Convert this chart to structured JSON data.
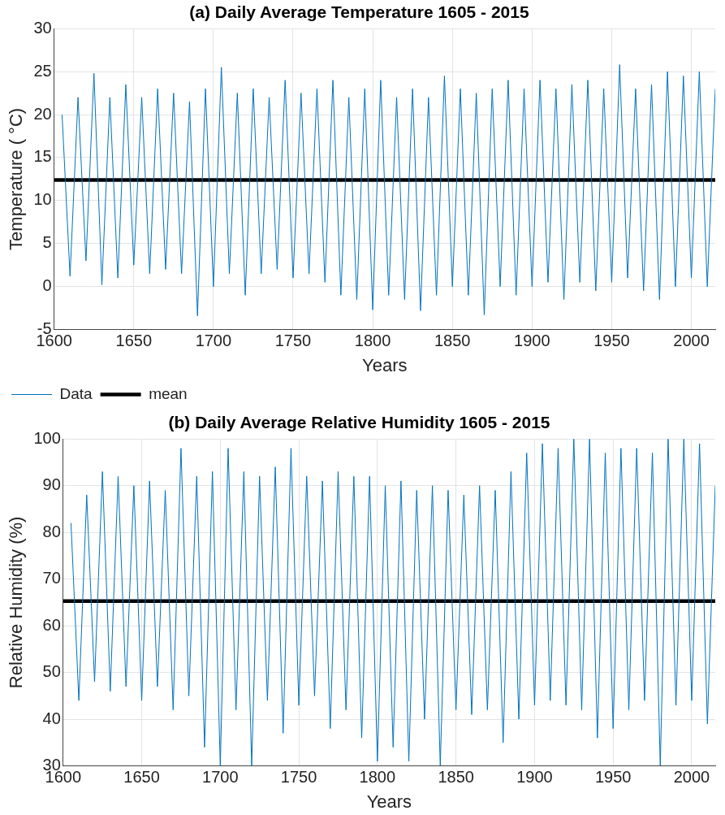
{
  "chart_data": [
    {
      "type": "line",
      "title": "(a) Daily Average Temperature 1605 - 2015",
      "xlabel": "Years",
      "ylabel": "Temperature ( °C)",
      "x": [
        1605,
        1610,
        1615,
        1620,
        1625,
        1630,
        1635,
        1640,
        1645,
        1650,
        1655,
        1660,
        1665,
        1670,
        1675,
        1680,
        1685,
        1690,
        1695,
        1700,
        1705,
        1710,
        1715,
        1720,
        1725,
        1730,
        1735,
        1740,
        1745,
        1750,
        1755,
        1760,
        1765,
        1770,
        1775,
        1780,
        1785,
        1790,
        1795,
        1800,
        1805,
        1810,
        1815,
        1820,
        1825,
        1830,
        1835,
        1840,
        1845,
        1850,
        1855,
        1860,
        1865,
        1870,
        1875,
        1880,
        1885,
        1890,
        1895,
        1900,
        1905,
        1910,
        1915,
        1920,
        1925,
        1930,
        1935,
        1940,
        1945,
        1950,
        1955,
        1960,
        1965,
        1970,
        1975,
        1980,
        1985,
        1990,
        1995,
        2000,
        2005,
        2010,
        2015
      ],
      "series": [
        {
          "name": "Data",
          "color": "#0072bd",
          "values": [
            20,
            1.2,
            22,
            3,
            24.8,
            0.2,
            22,
            1,
            23.5,
            2.5,
            22,
            1.5,
            23,
            2,
            22.5,
            1.5,
            21.5,
            -3.4,
            23,
            0,
            25.5,
            1.5,
            22.5,
            -1,
            23,
            1.5,
            22,
            2,
            24,
            1,
            22.5,
            1.5,
            23,
            0.5,
            24,
            -1,
            22,
            -1.5,
            23,
            -2.7,
            24,
            -1,
            22,
            -1.5,
            23,
            -2.8,
            22,
            -1,
            24.5,
            0,
            23,
            -1,
            22.5,
            -3.3,
            23,
            0,
            24,
            -1,
            23,
            0,
            24,
            0.5,
            23,
            -1.5,
            23.5,
            0.5,
            24,
            -0.5,
            23,
            0.5,
            25.8,
            1,
            23,
            -0.5,
            23.5,
            -1.5,
            25,
            0,
            24.5,
            1,
            25,
            0,
            23
          ]
        }
      ],
      "ref_lines": [
        {
          "axis": "y",
          "value": 12.4,
          "label": "mean",
          "color": "#000000"
        }
      ],
      "xlim": [
        1600,
        2015
      ],
      "xticks": [
        1600,
        1650,
        1700,
        1750,
        1800,
        1850,
        1900,
        1950,
        2000
      ],
      "ylim": [
        -5,
        30
      ],
      "yticks": [
        -5,
        0,
        5,
        10,
        15,
        20,
        25,
        30
      ],
      "grid": true,
      "legend": "bottom left"
    },
    {
      "type": "line",
      "title": "(b) Daily Average Relative Humidity 1605 - 2015",
      "xlabel": "Years",
      "ylabel": "Relative Humidity (%)",
      "x": [
        1605,
        1610,
        1615,
        1620,
        1625,
        1630,
        1635,
        1640,
        1645,
        1650,
        1655,
        1660,
        1665,
        1670,
        1675,
        1680,
        1685,
        1690,
        1695,
        1700,
        1705,
        1710,
        1715,
        1720,
        1725,
        1730,
        1735,
        1740,
        1745,
        1750,
        1755,
        1760,
        1765,
        1770,
        1775,
        1780,
        1785,
        1790,
        1795,
        1800,
        1805,
        1810,
        1815,
        1820,
        1825,
        1830,
        1835,
        1840,
        1845,
        1850,
        1855,
        1860,
        1865,
        1870,
        1875,
        1880,
        1885,
        1890,
        1895,
        1900,
        1905,
        1910,
        1915,
        1920,
        1925,
        1930,
        1935,
        1940,
        1945,
        1950,
        1955,
        1960,
        1965,
        1970,
        1975,
        1980,
        1985,
        1990,
        1995,
        2000,
        2005,
        2010,
        2015
      ],
      "series": [
        {
          "color": "#0072bd",
          "values": [
            82,
            44,
            88,
            48,
            93,
            46,
            92,
            47,
            90,
            44,
            91,
            47,
            89,
            42,
            98,
            45,
            92,
            34,
            93,
            30,
            98,
            42,
            93,
            30,
            92,
            44,
            94,
            37,
            98,
            43,
            92,
            45,
            91,
            38,
            93,
            42,
            92,
            36,
            92,
            31,
            90,
            34,
            91,
            31,
            89,
            40,
            90,
            30,
            89,
            42,
            88,
            41,
            90,
            42,
            89,
            35,
            93,
            40,
            97,
            43,
            99,
            44,
            98,
            43,
            100,
            42,
            100,
            36,
            97,
            38,
            98,
            42,
            98,
            44,
            97,
            30,
            100,
            43,
            100,
            44,
            99,
            39,
            90
          ]
        }
      ],
      "ref_lines": [
        {
          "axis": "y",
          "value": 65.3,
          "color": "#000000"
        }
      ],
      "xlim": [
        1600,
        2015
      ],
      "xticks": [
        1600,
        1650,
        1700,
        1750,
        1800,
        1850,
        1900,
        1950,
        2000
      ],
      "ylim": [
        30,
        100
      ],
      "yticks": [
        30,
        40,
        50,
        60,
        70,
        80,
        90,
        100
      ],
      "grid": true
    }
  ]
}
